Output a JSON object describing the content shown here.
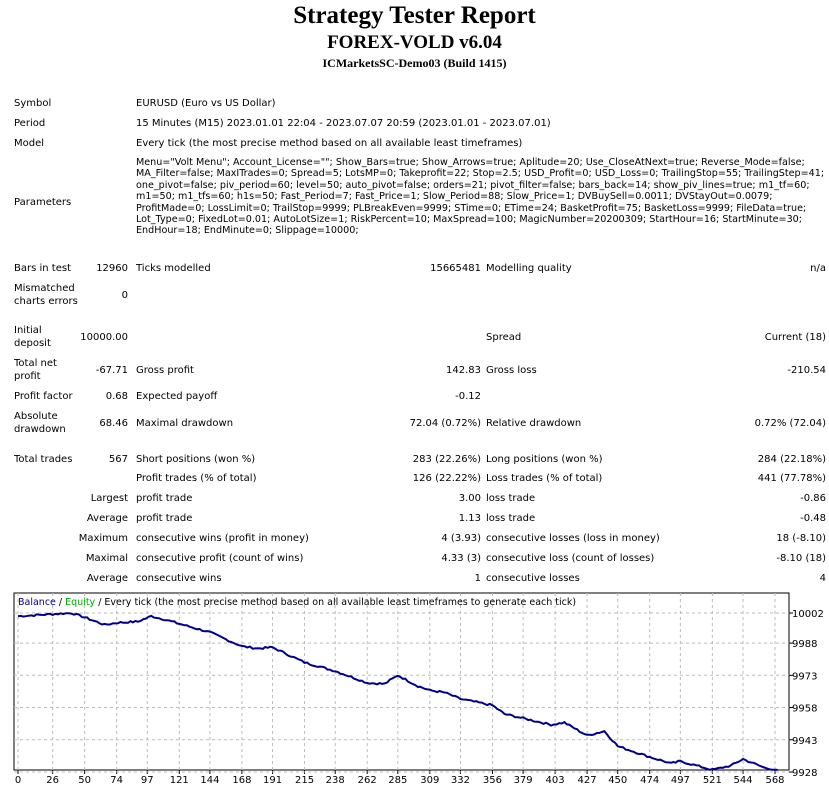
{
  "header": {
    "title": "Strategy Tester Report",
    "ea": "FOREX-VOLD v6.04",
    "server": "ICMarketsSC-Demo03 (Build 1415)"
  },
  "info": {
    "symbol_label": "Symbol",
    "symbol": "EURUSD (Euro vs US Dollar)",
    "period_label": "Period",
    "period": "15 Minutes (M15) 2023.01.01 22:04 - 2023.07.07 20:59 (2023.01.01 - 2023.07.01)",
    "model_label": "Model",
    "model": "Every tick (the most precise method based on all available least timeframes)",
    "parameters_label": "Parameters",
    "parameters": "Menu=\"Volt Menu\"; Account_License=\"\"; Show_Bars=true; Show_Arrows=true; Aplitude=20; Use_CloseAtNext=true; Reverse_Mode=false; MA_Filter=false; MaxITrades=0; Spread=5; LotsMP=0; Takeprofit=22; Stop=2.5; USD_Profit=0; USD_Loss=0; TrailingStop=55; TrailingStep=41; one_pivot=false; piv_period=60; level=50; auto_pivot=false; orders=21; pivot_filter=false; bars_back=14; show_piv_lines=true; m1_tf=60; m1=50; m1_tfs=60; h1s=50; Fast_Period=7; Fast_Price=1; Slow_Period=88; Slow_Price=1; DVBuySell=0.0011; DVStayOut=0.0079; ProfitMade=0; LossLimit=0; TrailStop=9999; PLBreakEven=9999; STime=0; ETime=24; BasketProfit=75; BasketLoss=9999; FileData=true; Lot_Type=0; FixedLot=0.01; AutoLotSize=1; RiskPercent=10; MaxSpread=100; MagicNumber=20200309; StartHour=16; StartMinute=30; EndHour=18; EndMinute=0; Slippage=10000;"
  },
  "stats": {
    "bars_label": "Bars in test",
    "bars": "12960",
    "ticks_label": "Ticks modelled",
    "ticks": "15665481",
    "quality_label": "Modelling quality",
    "quality": "n/a",
    "mismatch_label1": "Mismatched",
    "mismatch_label2": "charts errors",
    "mismatch": "0",
    "deposit_label1": "Initial",
    "deposit_label2": "deposit",
    "deposit": "10000.00",
    "spread_label": "Spread",
    "spread": "Current (18)",
    "net_label1": "Total net",
    "net_label2": "profit",
    "net": "-67.71",
    "gross_profit_label": "Gross profit",
    "gross_profit": "142.83",
    "gross_loss_label": "Gross loss",
    "gross_loss": "-210.54",
    "pf_label": "Profit factor",
    "pf": "0.68",
    "ep_label": "Expected payoff",
    "ep": "-0.12",
    "abs_label1": "Absolute",
    "abs_label2": "drawdown",
    "abs": "68.46",
    "maxdd_label": "Maximal drawdown",
    "maxdd": "72.04 (0.72%)",
    "reldd_label": "Relative drawdown",
    "reldd": "0.72% (72.04)",
    "trades_label": "Total trades",
    "trades": "567",
    "short_label": "Short positions (won %)",
    "short": "283 (22.26%)",
    "long_label": "Long positions (won %)",
    "long": "284 (22.18%)",
    "pt_label": "Profit trades (% of total)",
    "pt": "126 (22.22%)",
    "lt_label": "Loss trades (% of total)",
    "lt": "441 (77.78%)",
    "largest": "Largest",
    "avg": "Average",
    "maximum": "Maximum",
    "maximal": "Maximal",
    "average2": "Average",
    "lpt_label": "profit trade",
    "lpt": "3.00",
    "llt_label": "loss trade",
    "llt": "-0.86",
    "apt_label": "profit trade",
    "apt": "1.13",
    "alt_label": "loss trade",
    "alt": "-0.48",
    "mcw_label": "consecutive wins (profit in money)",
    "mcw": "4 (3.93)",
    "mcl_label": "consecutive losses (loss in money)",
    "mcl": "18 (-8.10)",
    "mcp_label": "consecutive profit (count of wins)",
    "mcp": "4.33 (3)",
    "mclo_label": "consecutive loss (count of losses)",
    "mclo": "-8.10 (18)",
    "acw_label": "consecutive wins",
    "acw": "1",
    "acl_label": "consecutive losses",
    "acl": "4"
  },
  "chart_data": {
    "type": "line",
    "legend_balance": "Balance",
    "legend_sep": " / ",
    "legend_equity": "Equity",
    "legend_rest": " / Every tick (the most precise method based on all available least timeframes to generate each tick)",
    "x_ticks": [
      0,
      26,
      50,
      74,
      97,
      121,
      144,
      168,
      191,
      215,
      238,
      262,
      285,
      309,
      332,
      356,
      379,
      403,
      427,
      450,
      474,
      497,
      521,
      544,
      568
    ],
    "y_ticks": [
      10002,
      9988,
      9973,
      9958,
      9943,
      9928
    ],
    "xlim": [
      0,
      570
    ],
    "ylim": [
      9927,
      10010
    ],
    "grid": true,
    "colors": {
      "balance": "#00008b",
      "equity": "#00aa00"
    },
    "series": [
      {
        "name": "Balance",
        "x": [
          0,
          26,
          40,
          50,
          65,
          75,
          90,
          100,
          110,
          121,
          144,
          168,
          180,
          191,
          215,
          238,
          262,
          275,
          285,
          300,
          309,
          320,
          332,
          356,
          365,
          379,
          400,
          410,
          427,
          440,
          450,
          474,
          490,
          497,
          521,
          535,
          544,
          560,
          570
        ],
        "y": [
          10000.5,
          10001.5,
          10002,
          10000,
          9996.5,
          9997.5,
          9998,
          10000.5,
          9999,
          9997,
          9993,
          9986.5,
          9985.5,
          9986,
          9979,
          9975,
          9969.5,
          9969,
          9973,
          9968,
          9966,
          9965,
          9962,
          9959,
          9955,
          9953,
          9950,
          9951,
          9945,
          9947,
          9940,
          9935,
          9932,
          9933,
          9929,
          9931,
          9934,
          9930,
          9929
        ]
      }
    ]
  }
}
